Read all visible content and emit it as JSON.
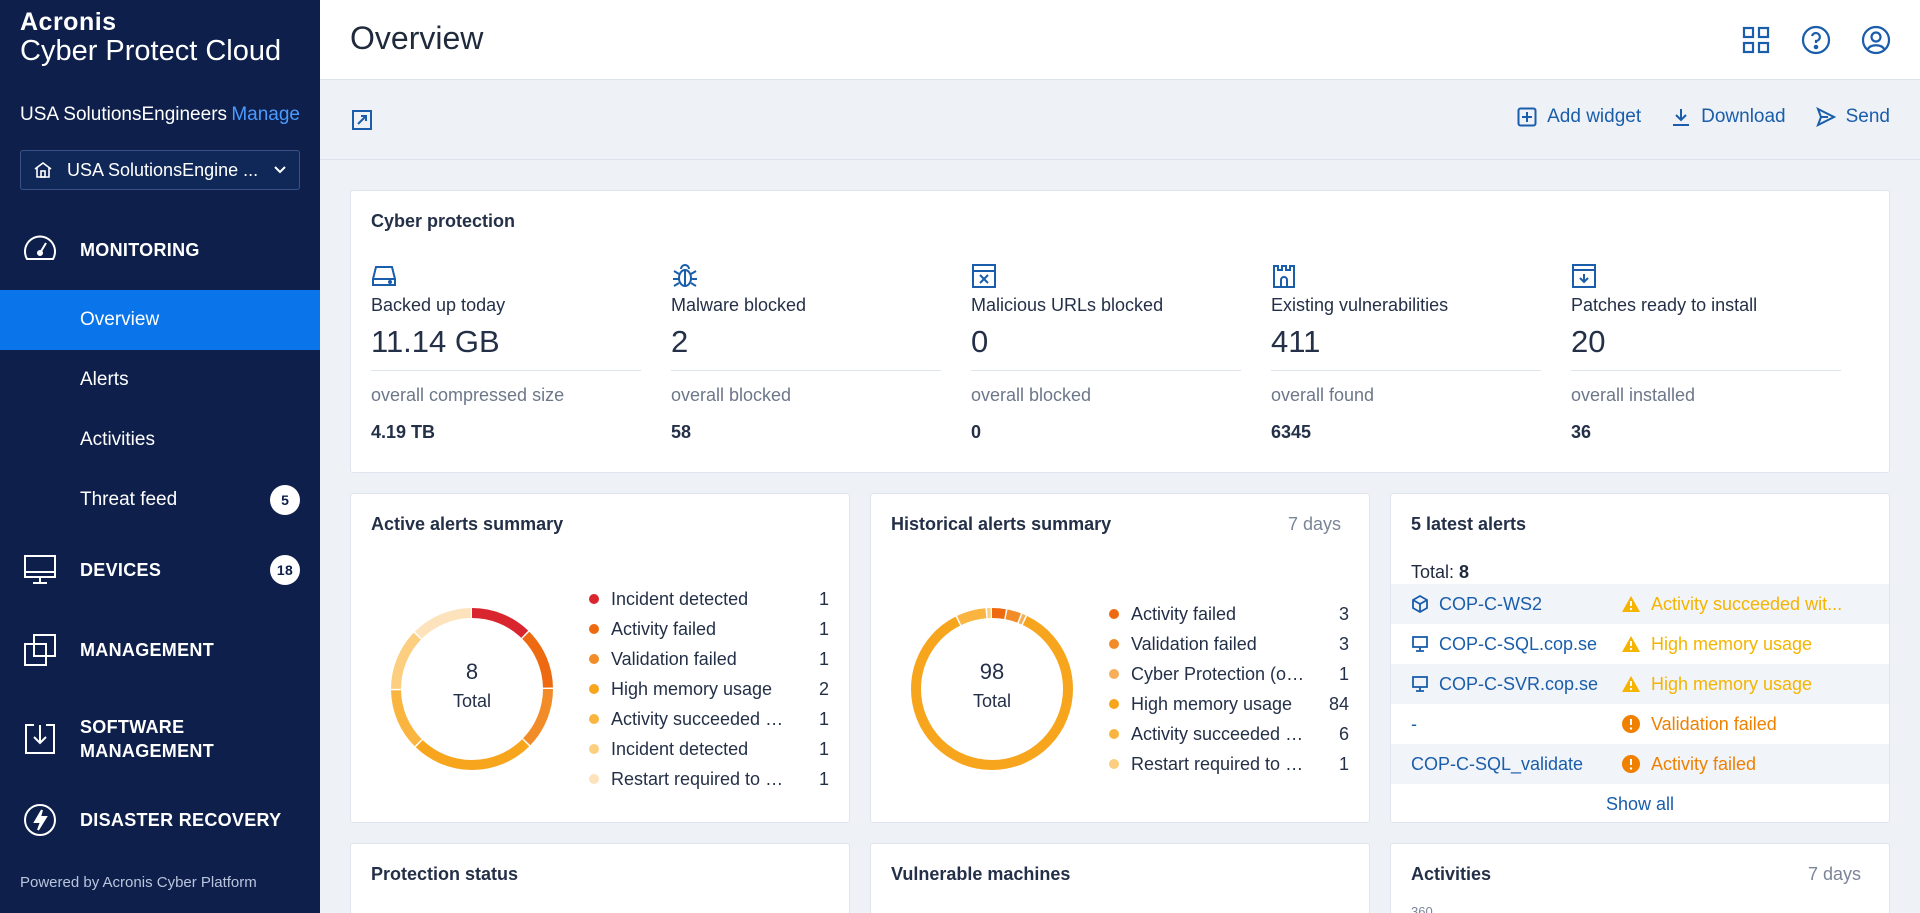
{
  "brand": {
    "line1": "Acronis",
    "line2": "Cyber Protect Cloud"
  },
  "tenant": {
    "name": "USA SolutionsEngineers",
    "manage_label": "Manage",
    "selected": "USA SolutionsEngine ..."
  },
  "nav": {
    "monitoring": "MONITORING",
    "items": [
      {
        "label": "Overview"
      },
      {
        "label": "Alerts"
      },
      {
        "label": "Activities"
      },
      {
        "label": "Threat feed",
        "badge": "5"
      }
    ],
    "devices": {
      "label": "DEVICES",
      "badge": "18"
    },
    "management": "MANAGEMENT",
    "software_line1": "SOFTWARE",
    "software_line2": "MANAGEMENT",
    "disaster": "DISASTER RECOVERY"
  },
  "powered_by": "Powered by Acronis Cyber Platform",
  "header": {
    "title": "Overview"
  },
  "toolbar": {
    "add_widget": "Add widget",
    "download": "Download",
    "send": "Send"
  },
  "cyber": {
    "title": "Cyber protection",
    "stats": [
      {
        "icon": "hard-drive-icon",
        "label": "Backed up today",
        "value": "11.14 GB",
        "sub": "overall compressed size",
        "subval": "4.19 TB"
      },
      {
        "icon": "bug-icon",
        "label": "Malware blocked",
        "value": "2",
        "sub": "overall blocked",
        "subval": "58"
      },
      {
        "icon": "blocked-url-icon",
        "label": "Malicious URLs blocked",
        "value": "0",
        "sub": "overall blocked",
        "subval": "0"
      },
      {
        "icon": "castle-icon",
        "label": "Existing vulnerabilities",
        "value": "411",
        "sub": "overall found",
        "subval": "6345"
      },
      {
        "icon": "patch-download-icon",
        "label": "Patches ready to install",
        "value": "20",
        "sub": "overall installed",
        "subval": "36"
      }
    ]
  },
  "active_alerts": {
    "title": "Active alerts summary",
    "total": "8",
    "total_label": "Total",
    "items": [
      {
        "name": "Incident detected",
        "value": 1,
        "color": "#d9262e"
      },
      {
        "name": "Activity failed",
        "value": 1,
        "color": "#ee6a10"
      },
      {
        "name": "Validation failed",
        "value": 1,
        "color": "#f28c28"
      },
      {
        "name": "High memory usage",
        "value": 2,
        "color": "#f7a51d"
      },
      {
        "name": "Activity succeeded wit...",
        "value": 1,
        "color": "#f9b53f"
      },
      {
        "name": "Incident detected",
        "value": 1,
        "color": "#fbcf7f"
      },
      {
        "name": "Restart required to co...",
        "value": 1,
        "color": "#fde3bb"
      }
    ]
  },
  "historical_alerts": {
    "title": "Historical alerts summary",
    "period": "7 days",
    "total": "98",
    "total_label": "Total",
    "items": [
      {
        "name": "Activity failed",
        "value": 3,
        "color": "#ee6a10"
      },
      {
        "name": "Validation failed",
        "value": 3,
        "color": "#f28c28"
      },
      {
        "name": "Cyber Protection (or ...",
        "value": 1,
        "color": "#f7ae5a"
      },
      {
        "name": "High memory usage",
        "value": 84,
        "color": "#f7a51d"
      },
      {
        "name": "Activity succeeded wi...",
        "value": 6,
        "color": "#f9b53f"
      },
      {
        "name": "Restart required to c...",
        "value": 1,
        "color": "#fbcf7f"
      }
    ]
  },
  "latest_alerts": {
    "title": "5 latest alerts",
    "total_label": "Total:",
    "total": "8",
    "rows": [
      {
        "device": "COP-C-WS2",
        "device_icon": "cube-icon",
        "status": "Activity succeeded wit...",
        "level": "warning"
      },
      {
        "device": "COP-C-SQL.cop.se",
        "device_icon": "monitor-icon",
        "status": "High memory usage",
        "level": "warning"
      },
      {
        "device": "COP-C-SVR.cop.se",
        "device_icon": "monitor-icon",
        "status": "High memory usage",
        "level": "warning"
      },
      {
        "device": "-",
        "device_icon": "",
        "status": "Validation failed",
        "level": "error"
      },
      {
        "device": "COP-C-SQL_validate",
        "device_icon": "",
        "status": "Activity failed",
        "level": "error"
      }
    ],
    "show_all": "Show all"
  },
  "bottom": {
    "protection_status": "Protection status",
    "vulnerable_machines": "Vulnerable machines",
    "activities": "Activities",
    "activities_period": "7 days",
    "activities_axis_top": "360"
  }
}
